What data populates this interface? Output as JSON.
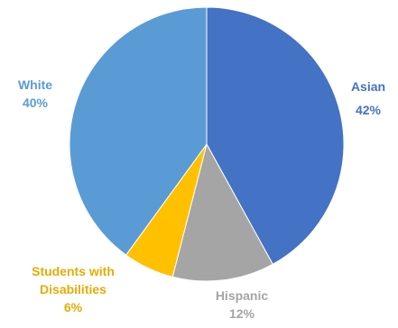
{
  "chart_data": {
    "type": "pie",
    "title": "",
    "slices": [
      {
        "label": "Asian",
        "value": 42,
        "value_label": "42%",
        "color": "#4472C4",
        "label_color": "#4472C4"
      },
      {
        "label": "Hispanic",
        "value": 12,
        "value_label": "12%",
        "color": "#A5A5A5",
        "label_color": "#A5A5A5"
      },
      {
        "label": "Students with Disabilities",
        "value": 6,
        "value_label": "6%",
        "color": "#FFC000",
        "label_color": "#E6AC00"
      },
      {
        "label": "White",
        "value": 40,
        "value_label": "40%",
        "color": "#5B9BD5",
        "label_color": "#5B9BD5"
      }
    ],
    "start_angle": "12 o'clock",
    "direction": "clockwise",
    "legend": "none"
  }
}
